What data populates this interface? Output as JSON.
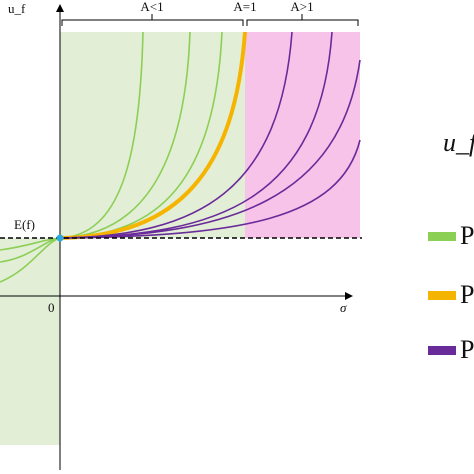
{
  "axes": {
    "y_label": "u_f",
    "x_label": "σ",
    "origin": "0",
    "point": "E(f)"
  },
  "regions": [
    "A<1",
    "A=1",
    "A>1"
  ],
  "side_label": "u_f",
  "legend": [
    "P",
    "P",
    "P"
  ]
}
